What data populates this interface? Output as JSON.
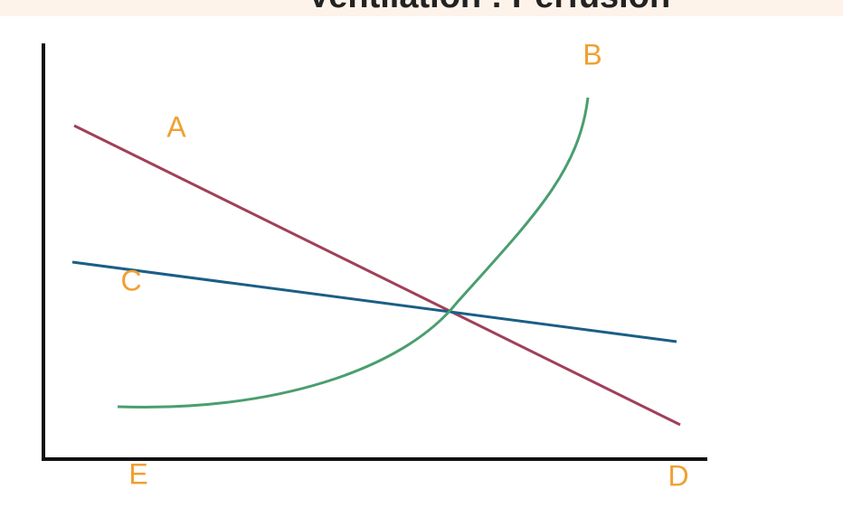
{
  "header": {
    "title": "Ventilation : Perfusion"
  },
  "labels": {
    "a": "A",
    "b": "B",
    "c": "C",
    "d": "D",
    "e": "E"
  }
}
